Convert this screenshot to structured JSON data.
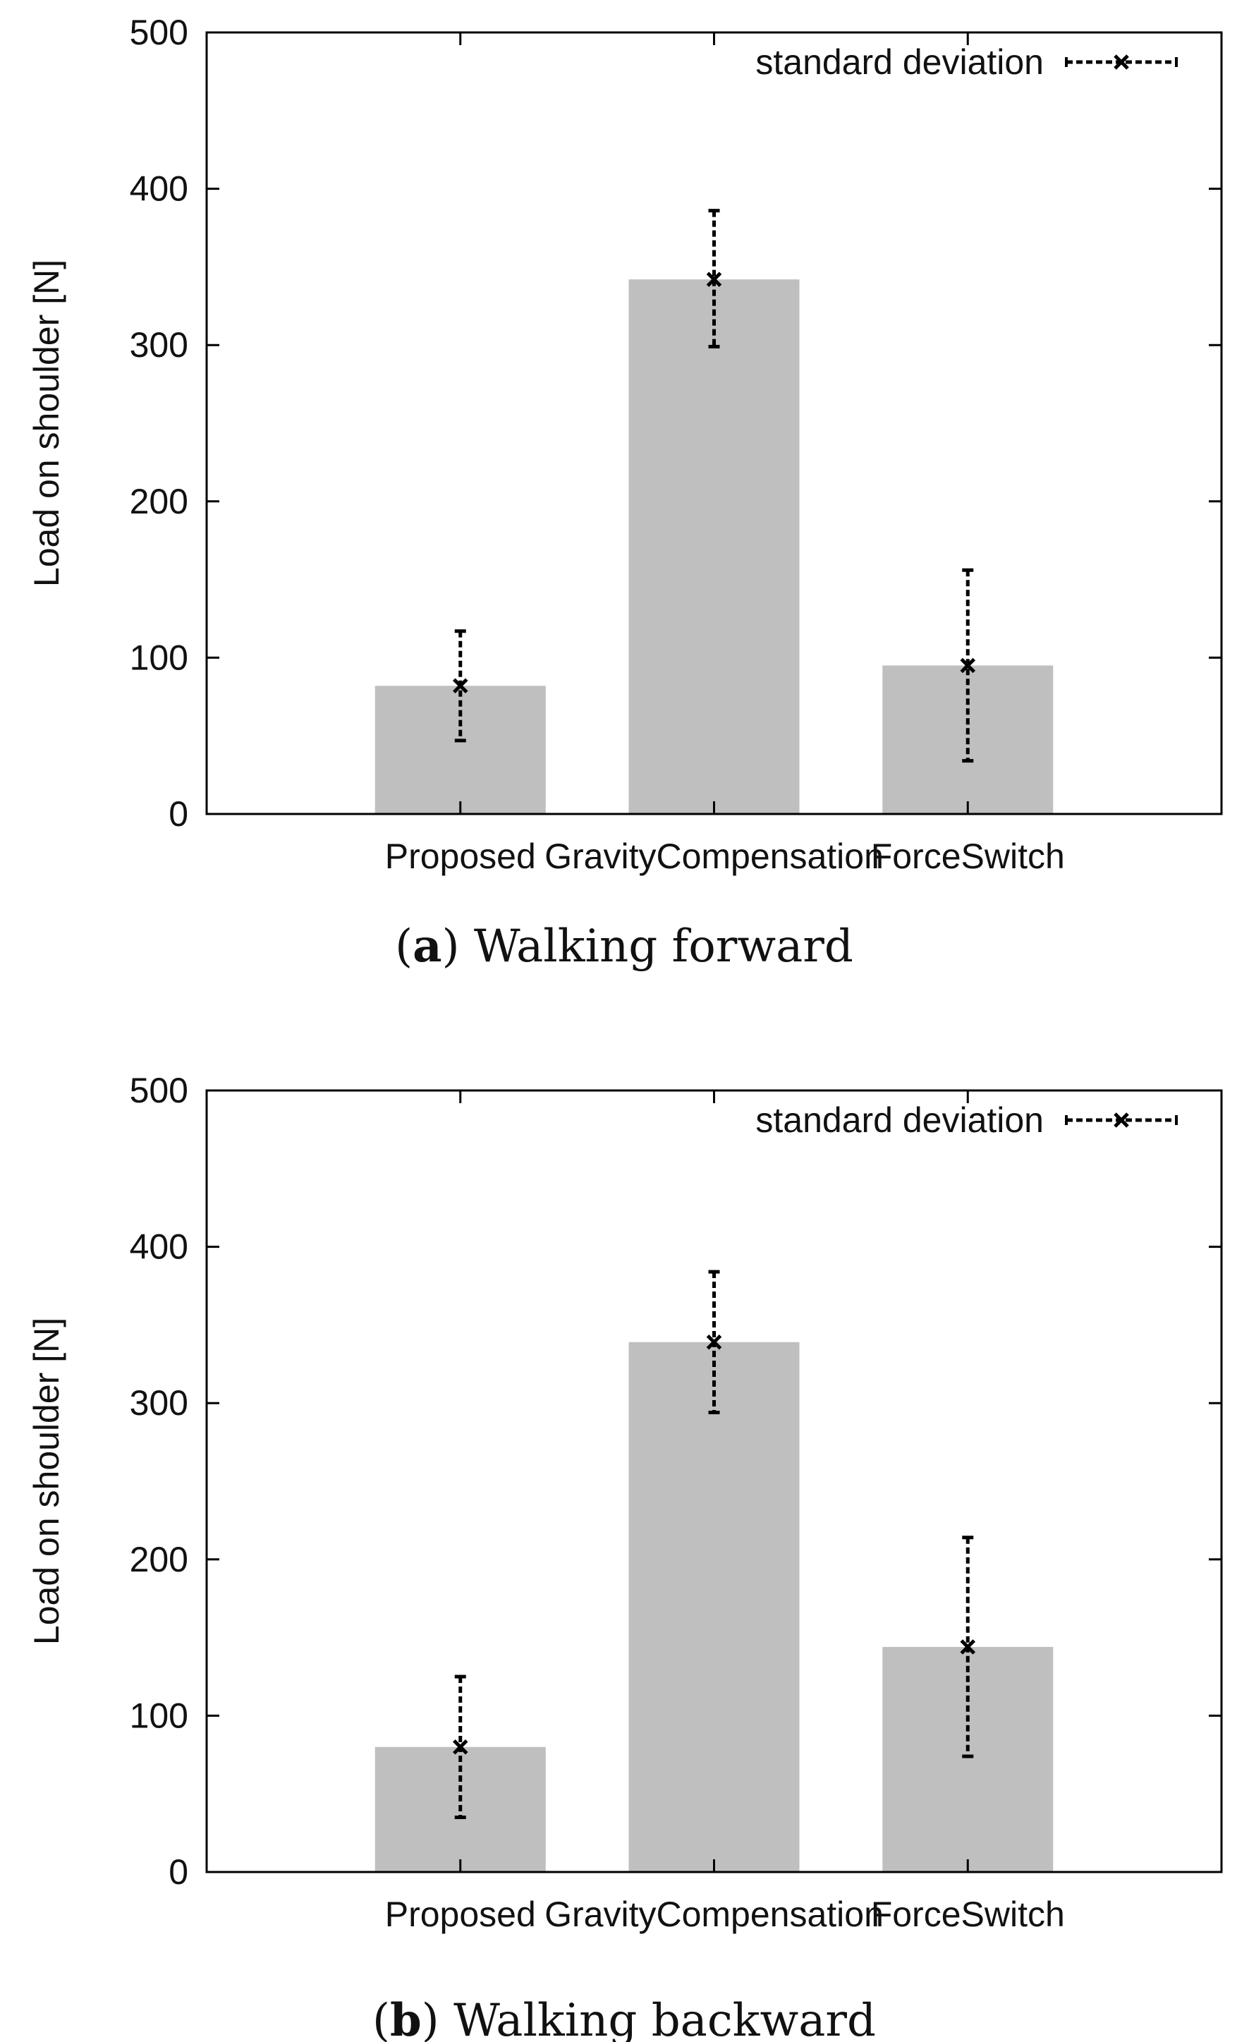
{
  "chart_data": [
    {
      "type": "bar",
      "panel_label": "a",
      "caption_text": "Walking forward",
      "categories": [
        "Proposed",
        "GravityCompensation",
        "ForceSwitch"
      ],
      "series": [
        {
          "name": "Load on shoulder",
          "values": [
            82,
            342,
            95
          ],
          "error_low": [
            47,
            299,
            34
          ],
          "error_high": [
            117,
            386,
            156
          ]
        }
      ],
      "legend": [
        "standard deviation"
      ],
      "legend_position": "top-right",
      "xlabel": "",
      "ylabel": "Load on shoulder [N]",
      "ylim": [
        0,
        500
      ],
      "yticks": [
        "0",
        "100",
        "200",
        "300",
        "400",
        "500"
      ],
      "grid": false,
      "colors": {
        "bar": "#bfbfbf",
        "error": "#000000"
      }
    },
    {
      "type": "bar",
      "panel_label": "b",
      "caption_text": "Walking backward",
      "categories": [
        "Proposed",
        "GravityCompensation",
        "ForceSwitch"
      ],
      "series": [
        {
          "name": "Load on shoulder",
          "values": [
            80,
            339,
            144
          ],
          "error_low": [
            35,
            294,
            74
          ],
          "error_high": [
            125,
            384,
            214
          ]
        }
      ],
      "legend": [
        "standard deviation"
      ],
      "legend_position": "top-right",
      "xlabel": "",
      "ylabel": "Load on shoulder [N]",
      "ylim": [
        0,
        500
      ],
      "yticks": [
        "0",
        "100",
        "200",
        "300",
        "400",
        "500"
      ],
      "grid": false,
      "colors": {
        "bar": "#bfbfbf",
        "error": "#000000"
      }
    }
  ]
}
